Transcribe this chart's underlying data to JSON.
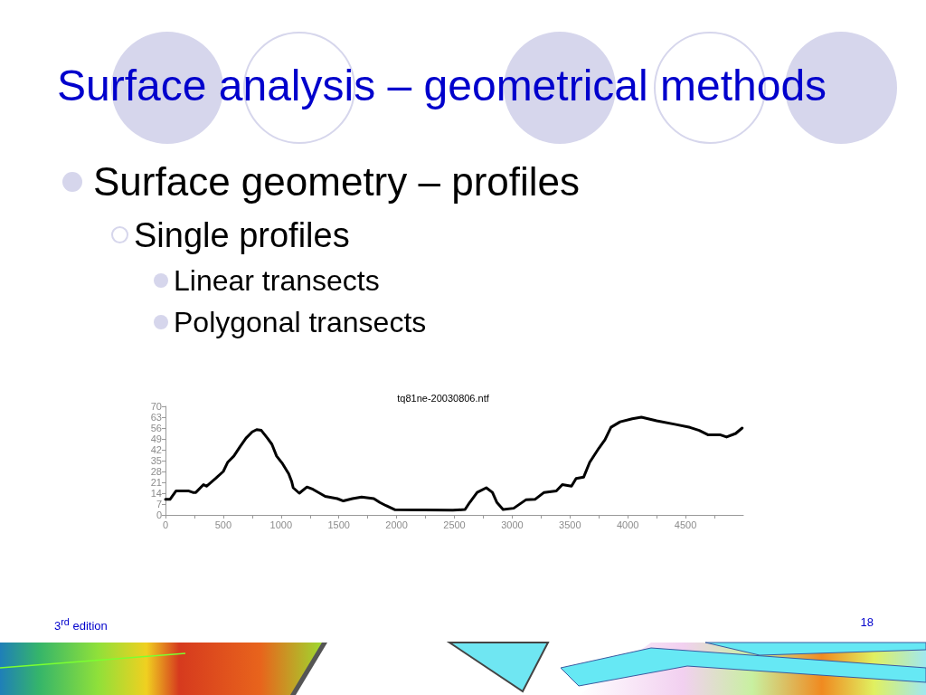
{
  "chart_data": {
    "type": "line",
    "title": "Surface analysis – geometrical methods",
    "subtitle": "tq81ne-20030806.ntf",
    "annotations": [
      "Surface geometry – profiles",
      "Single profiles",
      "Linear transects",
      "Polygonal transects",
      "3$^{rd}$ edition",
      "18"
    ],
    "x": [
      0,
      39,
      92,
      197,
      237,
      263,
      329,
      355,
      434,
      500,
      539,
      592,
      645,
      697,
      750,
      789,
      829,
      882,
      921,
      961,
      1013,
      1066,
      1092,
      1105,
      1158,
      1224,
      1276,
      1382,
      1487,
      1539,
      1618,
      1697,
      1803,
      1855,
      1908,
      1987,
      2487,
      2592,
      2632,
      2697,
      2776,
      2829,
      2868,
      2921,
      3013,
      3118,
      3197,
      3276,
      3382,
      3434,
      3513,
      3553,
      3618,
      3671,
      3750,
      3803,
      3855,
      3934,
      4039,
      4118,
      4250,
      4408,
      4539,
      4618,
      4697,
      4803,
      4855,
      4934,
      4990
    ],
    "values": [
      10,
      10,
      15.5,
      15.5,
      14.5,
      14.5,
      19.5,
      18.5,
      23.5,
      28,
      34,
      38,
      44,
      49.5,
      53.5,
      55,
      54.5,
      49.5,
      45.5,
      38,
      33,
      26.5,
      21.5,
      17.5,
      14,
      18,
      16.5,
      12,
      10.5,
      9,
      10.5,
      11.5,
      10.5,
      8,
      6,
      3.3,
      3,
      3.5,
      8,
      14.5,
      17.5,
      14.5,
      8,
      3.5,
      4.3,
      9.7,
      10,
      14.5,
      15.5,
      19.5,
      18.5,
      23.5,
      24.3,
      34,
      43,
      48.5,
      56.5,
      60,
      62,
      63,
      60.7,
      58.4,
      56.4,
      54.5,
      51.6,
      51.6,
      50.2,
      52.5,
      56
    ],
    "color": "#000000",
    "xlim": [
      0,
      5000
    ],
    "xticks": [
      0,
      {
        "value": 250,
        "label": null
      },
      500,
      {
        "value": 750,
        "label": null
      },
      1000,
      {
        "value": 1250,
        "label": null
      },
      1500,
      {
        "value": 1750,
        "label": null
      },
      2000,
      {
        "value": 2250,
        "label": null
      },
      2500,
      {
        "value": 2750,
        "label": null
      },
      3000,
      {
        "value": 3250,
        "label": null
      },
      3500,
      {
        "value": 3750,
        "label": null
      },
      4000,
      {
        "value": 4250,
        "label": null
      },
      4500,
      {
        "value": 4750,
        "label": null
      }
    ],
    "ylim": [
      0,
      70
    ],
    "yticks": [
      0,
      7,
      14,
      21,
      28,
      35,
      42,
      49,
      56,
      63,
      70
    ]
  }
}
